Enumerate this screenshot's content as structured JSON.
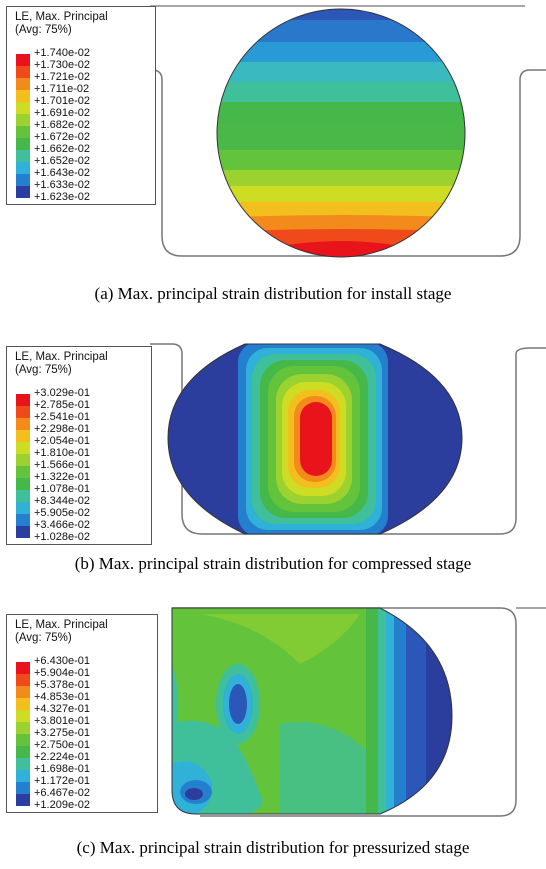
{
  "panels": [
    {
      "id": "a",
      "legend": {
        "title": "LE, Max. Principal",
        "subtitle": "(Avg: 75%)",
        "values": [
          "+1.740e-02",
          "+1.730e-02",
          "+1.721e-02",
          "+1.711e-02",
          "+1.701e-02",
          "+1.691e-02",
          "+1.682e-02",
          "+1.672e-02",
          "+1.662e-02",
          "+1.652e-02",
          "+1.643e-02",
          "+1.633e-02",
          "+1.623e-02"
        ]
      },
      "caption": "(a) Max. principal strain distribution for install stage"
    },
    {
      "id": "b",
      "legend": {
        "title": "LE, Max. Principal",
        "subtitle": "(Avg: 75%)",
        "values": [
          "+3.029e-01",
          "+2.785e-01",
          "+2.541e-01",
          "+2.298e-01",
          "+2.054e-01",
          "+1.810e-01",
          "+1.566e-01",
          "+1.322e-01",
          "+1.078e-01",
          "+8.344e-02",
          "+5.905e-02",
          "+3.466e-02",
          "+1.028e-02"
        ]
      },
      "caption": "(b) Max. principal strain distribution for compressed stage"
    },
    {
      "id": "c",
      "legend": {
        "title": "LE, Max. Principal",
        "subtitle": "(Avg: 75%)",
        "values": [
          "+6.430e-01",
          "+5.904e-01",
          "+5.378e-01",
          "+4.853e-01",
          "+4.327e-01",
          "+3.801e-01",
          "+3.275e-01",
          "+2.750e-01",
          "+2.224e-01",
          "+1.698e-01",
          "+1.172e-01",
          "+6.467e-02",
          "+1.209e-02"
        ]
      },
      "caption": "(c) Max. principal strain distribution for pressurized stage"
    }
  ],
  "colormap": [
    "#e8131b",
    "#f04a1a",
    "#f38a1c",
    "#f3bf1f",
    "#cfdc24",
    "#9bd22f",
    "#63c43b",
    "#46b84a",
    "#3fbf9a",
    "#2fb1d8",
    "#2480cf",
    "#2a57b8",
    "#2b3e9e"
  ]
}
